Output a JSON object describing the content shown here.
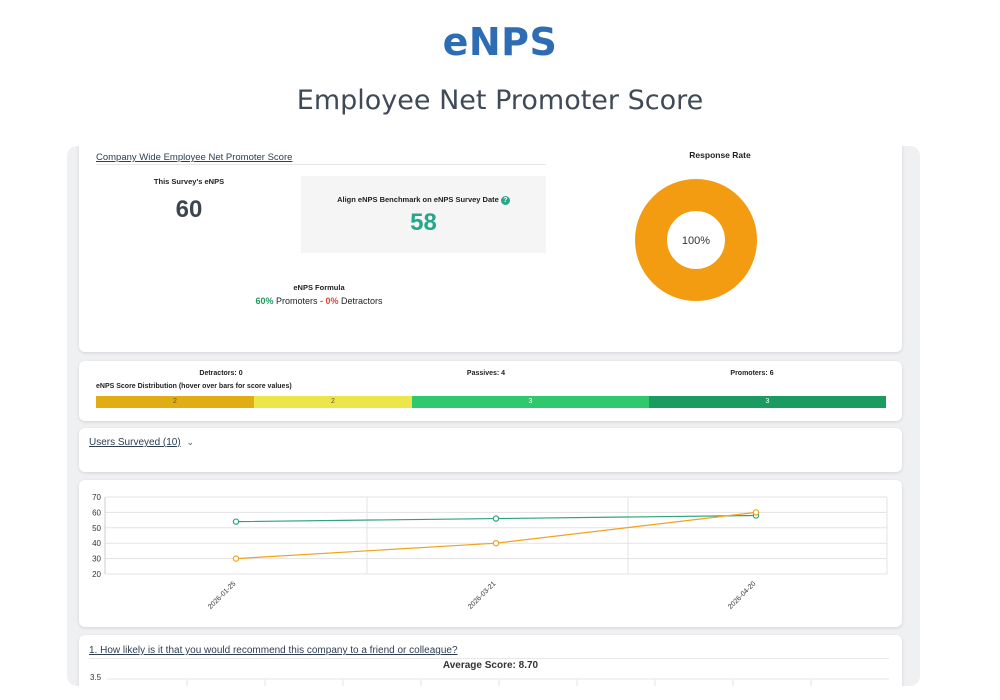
{
  "hero": {
    "title": "eNPS",
    "subtitle": "Employee Net Promoter Score"
  },
  "summary": {
    "section_title": "Company Wide Employee Net Promoter Score",
    "this_survey_label": "This Survey's eNPS",
    "this_survey_value": "60",
    "benchmark_label": "Align eNPS Benchmark on eNPS Survey Date",
    "benchmark_value": "58",
    "formula_title": "eNPS Formula",
    "formula_promoters_pct": "60%",
    "formula_promoters_word": "Promoters",
    "formula_dash": "-",
    "formula_detractors_pct": "0%",
    "formula_detractors_word": "Detractors",
    "response_rate_title": "Response Rate",
    "response_rate_value": "100%",
    "response_rate_fraction": 1.0
  },
  "distribution": {
    "detractors_label": "Detractors: 0",
    "passives_label": "Passives: 4",
    "promoters_label": "Promoters: 6",
    "title": "eNPS Score Distribution (hover over bars for score values)",
    "segments": [
      {
        "value": "2",
        "color": "#e0ad14",
        "count": 2
      },
      {
        "value": "2",
        "color": "#ece64a",
        "count": 2
      },
      {
        "value": "3",
        "color": "#2ec86d",
        "count": 3
      },
      {
        "value": "3",
        "color": "#1a9b5f",
        "count": 3
      }
    ]
  },
  "users": {
    "label": "Users Surveyed (10)",
    "chevron_icon": "chevron-down-icon"
  },
  "chart_data": {
    "type": "line",
    "x": [
      "2026-01-25",
      "2026-03-21",
      "2026-04-20"
    ],
    "series": [
      {
        "values": [
          54,
          56,
          58
        ],
        "color": "#2fa37a"
      },
      {
        "values": [
          30,
          40,
          60
        ],
        "color": "#f1a21e"
      }
    ],
    "ylim": [
      20,
      70
    ],
    "yticks": [
      70,
      60,
      50,
      40,
      30,
      20
    ],
    "grid": true
  },
  "question": {
    "title": "1. How likely is it that you would recommend this company to a friend or colleague?",
    "average_label": "Average Score: 8.70",
    "first_tick": "3.5"
  },
  "colors": {
    "accent_blue": "#2e6db4",
    "teal": "#26a68b",
    "promoter_green": "#1e9b5a",
    "detractor_red": "#e0452f",
    "orange": "#f39c12"
  }
}
